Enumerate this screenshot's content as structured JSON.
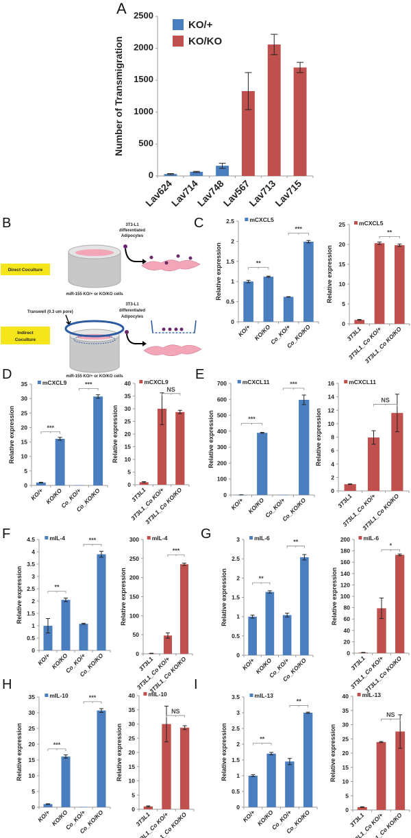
{
  "panels": {
    "A": "A",
    "B": "B",
    "C": "C",
    "D": "D",
    "E": "E",
    "F": "F",
    "G": "G",
    "H": "H",
    "I": "I"
  },
  "colors": {
    "blue": "#4a7ebf",
    "red": "#c0504d"
  },
  "diagram": {
    "direct_label": "Direct Coculture",
    "indirect_label_1": "Indirect",
    "indirect_label_2": "Coculture",
    "adipo_1": [
      "3T3-L1",
      "differentiated",
      "Adipocytes"
    ],
    "adipo_2": [
      "3T3-L1",
      "differentiated",
      "Adipocytes"
    ],
    "cells_1": "miR-155 KO/+ or KO/KO cells",
    "cells_2": "miR-155 KO/+ or KO/KO cells",
    "transwell": "Transwell (0.3 um pore)"
  },
  "chart_data": [
    {
      "id": "A",
      "type": "bar",
      "ylabel": "Number of Transmigration",
      "ylim": [
        0,
        2500
      ],
      "yticks": [
        0,
        500,
        1000,
        1500,
        2000,
        2500
      ],
      "legend": [
        {
          "label": "KO/+",
          "color": "blue"
        },
        {
          "label": "KO/KO",
          "color": "red"
        }
      ],
      "categories": [
        "Lav624",
        "Lav714",
        "Lav748",
        "Lav567",
        "Lav713",
        "Lav715"
      ],
      "values": [
        30,
        65,
        160,
        1330,
        2060,
        1700
      ],
      "errors": [
        8,
        8,
        40,
        290,
        160,
        80
      ],
      "bar_colors": [
        "blue",
        "blue",
        "blue",
        "red",
        "red",
        "red"
      ],
      "significance": []
    },
    {
      "id": "C1",
      "type": "bar",
      "ylabel": "Relative expression",
      "ylim": [
        0,
        2.5
      ],
      "yticks": [
        0,
        0.5,
        1,
        1.5,
        2,
        2.5
      ],
      "legend": [
        {
          "label": "mCXCL5",
          "color": "blue"
        }
      ],
      "categories": [
        "KO/+",
        "KO/KO",
        "Co_KO/+",
        "Co_KO/KO"
      ],
      "values": [
        1.0,
        1.12,
        0.62,
        1.99
      ],
      "errors": [
        0.03,
        0.015,
        0.005,
        0.03
      ],
      "bar_colors": [
        "blue",
        "blue",
        "blue",
        "blue"
      ],
      "significance": [
        {
          "from": 0,
          "to": 1,
          "y": 1.35,
          "label": "**"
        },
        {
          "from": 2,
          "to": 3,
          "y": 2.2,
          "label": "***"
        }
      ]
    },
    {
      "id": "C2",
      "type": "bar",
      "ylabel": "Relative expression",
      "ylim": [
        0,
        25
      ],
      "yticks": [
        0,
        5,
        10,
        15,
        20,
        25
      ],
      "legend": [
        {
          "label": "mCXCL5",
          "color": "red"
        }
      ],
      "categories": [
        "3T3L1",
        "3T3L1_Co KO/+",
        "3T3L1_Co KO/KO"
      ],
      "values": [
        1.0,
        20.3,
        19.8
      ],
      "errors": [
        0.1,
        0.3,
        0.3
      ],
      "bar_colors": [
        "red",
        "red",
        "red"
      ],
      "significance": [
        {
          "from": 1,
          "to": 2,
          "y": 22,
          "label": "**"
        }
      ]
    },
    {
      "id": "D1",
      "type": "bar",
      "ylabel": "Relative expression",
      "ylim": [
        0,
        35
      ],
      "yticks": [
        0,
        5,
        10,
        15,
        20,
        25,
        30,
        35
      ],
      "legend": [
        {
          "label": "mCXCL9",
          "color": "blue"
        }
      ],
      "categories": [
        "KO/+",
        "KO/KO",
        "Co_KO/+",
        "Co_KO/KO"
      ],
      "values": [
        1.0,
        16.1,
        0.1,
        30.7
      ],
      "errors": [
        0.1,
        0.5,
        0,
        0.6
      ],
      "bar_colors": [
        "blue",
        "blue",
        "blue",
        "blue"
      ],
      "significance": [
        {
          "from": 0,
          "to": 1,
          "y": 18.5,
          "label": "***"
        },
        {
          "from": 2,
          "to": 3,
          "y": 33.5,
          "label": "***"
        }
      ]
    },
    {
      "id": "D2",
      "type": "bar",
      "ylabel": "Relative expression",
      "ylim": [
        0,
        40
      ],
      "yticks": [
        0,
        5,
        10,
        15,
        20,
        25,
        30,
        35,
        40
      ],
      "legend": [
        {
          "label": "mCXCL9",
          "color": "red"
        }
      ],
      "categories": [
        "3T3L1",
        "3T3L1_Co KO/+",
        "3T3L1_Co KO/KO"
      ],
      "values": [
        1.0,
        30.0,
        28.7
      ],
      "errors": [
        0.2,
        6.3,
        0.7
      ],
      "bar_colors": [
        "red",
        "red",
        "red"
      ],
      "significance": [
        {
          "from": 1,
          "to": 2,
          "y": 36,
          "label": "NS"
        }
      ]
    },
    {
      "id": "E1",
      "type": "bar",
      "ylabel": "Relative expression",
      "ylim": [
        0,
        700
      ],
      "yticks": [
        0,
        100,
        200,
        300,
        400,
        500,
        600,
        700
      ],
      "legend": [
        {
          "label": "mCXCL11",
          "color": "blue"
        }
      ],
      "categories": [
        "KO/+",
        "KO/KO",
        "Co_KO/+",
        "Co_KO/KO"
      ],
      "values": [
        1,
        390,
        1,
        597
      ],
      "errors": [
        0.5,
        3,
        0,
        30
      ],
      "bar_colors": [
        "blue",
        "blue",
        "blue",
        "blue"
      ],
      "significance": [
        {
          "from": 0,
          "to": 1,
          "y": 450,
          "label": "***"
        },
        {
          "from": 2,
          "to": 3,
          "y": 670,
          "label": "***"
        }
      ]
    },
    {
      "id": "E2",
      "type": "bar",
      "ylabel": "Relative expression",
      "ylim": [
        0,
        16
      ],
      "yticks": [
        0,
        2,
        4,
        6,
        8,
        10,
        12,
        14,
        16
      ],
      "legend": [
        {
          "label": "mCXCL11",
          "color": "red"
        }
      ],
      "categories": [
        "3T3L1",
        "3T3L1_Co KO/+",
        "3T3L1_Co KO/KO"
      ],
      "values": [
        1.0,
        7.95,
        11.6
      ],
      "errors": [
        0.05,
        1.0,
        2.8
      ],
      "bar_colors": [
        "red",
        "red",
        "red"
      ],
      "significance": [
        {
          "from": 1,
          "to": 2,
          "y": 12.9,
          "label": "NS"
        }
      ]
    },
    {
      "id": "F1",
      "type": "bar",
      "ylabel": "Relative expression",
      "ylim": [
        0,
        4.5
      ],
      "yticks": [
        0,
        0.5,
        1,
        1.5,
        2,
        2.5,
        3,
        3.5,
        4,
        4.5
      ],
      "legend": [
        {
          "label": "mIL-4",
          "color": "blue"
        }
      ],
      "categories": [
        "KO/+",
        "KO/KO",
        "Co_KO/+",
        "Co_KO/KO"
      ],
      "values": [
        1.0,
        2.05,
        1.08,
        3.9
      ],
      "errors": [
        0.29,
        0.07,
        0.02,
        0.12
      ],
      "bar_colors": [
        "blue",
        "blue",
        "blue",
        "blue"
      ],
      "significance": [
        {
          "from": 0,
          "to": 1,
          "y": 2.4,
          "label": "**"
        },
        {
          "from": 2,
          "to": 3,
          "y": 4.3,
          "label": "***"
        }
      ]
    },
    {
      "id": "F2",
      "type": "bar",
      "ylabel": "Relative expression",
      "ylim": [
        0,
        300
      ],
      "yticks": [
        0,
        50,
        100,
        150,
        200,
        250,
        300
      ],
      "legend": [
        {
          "label": "mIL-4",
          "color": "red"
        }
      ],
      "categories": [
        "3T3L1",
        "3T3L1_Co KO/+",
        "3T3L1_Co KO/KO"
      ],
      "values": [
        1,
        48,
        235
      ],
      "errors": [
        0.5,
        7,
        3
      ],
      "bar_colors": [
        "red",
        "red",
        "red"
      ],
      "significance": [
        {
          "from": 1,
          "to": 2,
          "y": 260,
          "label": "***"
        }
      ]
    },
    {
      "id": "G1",
      "type": "bar",
      "ylabel": "Relative expression",
      "ylim": [
        0,
        3
      ],
      "yticks": [
        0,
        0.5,
        1,
        1.5,
        2,
        2.5,
        3
      ],
      "legend": [
        {
          "label": "mIL-6",
          "color": "blue"
        }
      ],
      "categories": [
        "KO/+",
        "KO/KO",
        "Co_KO/+",
        "Co_KO/KO"
      ],
      "values": [
        1.0,
        1.64,
        1.04,
        2.54
      ],
      "errors": [
        0.04,
        0.03,
        0.05,
        0.07
      ],
      "bar_colors": [
        "blue",
        "blue",
        "blue",
        "blue"
      ],
      "significance": [
        {
          "from": 0,
          "to": 1,
          "y": 1.88,
          "label": "**"
        },
        {
          "from": 2,
          "to": 3,
          "y": 2.83,
          "label": "**"
        }
      ]
    },
    {
      "id": "G2",
      "type": "bar",
      "ylabel": "Relative expression",
      "ylim": [
        0,
        200
      ],
      "yticks": [
        0,
        20,
        40,
        60,
        80,
        100,
        120,
        140,
        160,
        180,
        200
      ],
      "legend": [
        {
          "label": "mIL-6",
          "color": "red"
        }
      ],
      "categories": [
        "3T3L1",
        "3T3L1_Co KO/+",
        "3T3L1_Co KO/KO"
      ],
      "values": [
        1,
        79,
        173
      ],
      "errors": [
        0.3,
        18,
        1.5
      ],
      "bar_colors": [
        "red",
        "red",
        "red"
      ],
      "significance": [
        {
          "from": 1,
          "to": 2,
          "y": 182,
          "label": "*"
        }
      ]
    },
    {
      "id": "H1",
      "type": "bar",
      "ylabel": "Relative expression",
      "ylim": [
        0,
        35
      ],
      "yticks": [
        0,
        5,
        10,
        15,
        20,
        25,
        30,
        35
      ],
      "legend": [
        {
          "label": "mIL-10",
          "color": "blue"
        }
      ],
      "categories": [
        "KO/+",
        "KO/KO",
        "Co_KO/+",
        "Co_KO/KO"
      ],
      "values": [
        1.0,
        16.1,
        0.1,
        30.7
      ],
      "errors": [
        0.1,
        0.5,
        0,
        0.6
      ],
      "bar_colors": [
        "blue",
        "blue",
        "blue",
        "blue"
      ],
      "significance": [
        {
          "from": 0,
          "to": 1,
          "y": 18.5,
          "label": "***"
        },
        {
          "from": 2,
          "to": 3,
          "y": 33.5,
          "label": "***"
        }
      ]
    },
    {
      "id": "H2",
      "type": "bar",
      "ylabel": "Relative expression",
      "ylim": [
        0,
        40
      ],
      "yticks": [
        0,
        5,
        10,
        15,
        20,
        25,
        30,
        35,
        40
      ],
      "legend": [
        {
          "label": "mIL-10",
          "color": "red"
        }
      ],
      "categories": [
        "3T3L1",
        "3T3L1_Co KO/+",
        "3T3L1_Co KO/KO"
      ],
      "values": [
        1.0,
        30.0,
        28.7
      ],
      "errors": [
        0.2,
        6.3,
        0.7
      ],
      "bar_colors": [
        "red",
        "red",
        "red"
      ],
      "significance": [
        {
          "from": 1,
          "to": 2,
          "y": 33,
          "label": "NS"
        }
      ]
    },
    {
      "id": "I1",
      "type": "bar",
      "ylabel": "Relative expression",
      "ylim": [
        0,
        3.5
      ],
      "yticks": [
        0,
        0.5,
        1,
        1.5,
        2,
        2.5,
        3,
        3.5
      ],
      "legend": [
        {
          "label": "mIL-13",
          "color": "blue"
        }
      ],
      "categories": [
        "KO/+",
        "KO/KO",
        "Co_KO/+",
        "Co_KO/KO"
      ],
      "values": [
        1.0,
        1.7,
        1.45,
        3.0
      ],
      "errors": [
        0.03,
        0.04,
        0.1,
        0.02
      ],
      "bar_colors": [
        "blue",
        "blue",
        "blue",
        "blue"
      ],
      "significance": [
        {
          "from": 0,
          "to": 1,
          "y": 2.03,
          "label": "**"
        },
        {
          "from": 2,
          "to": 3,
          "y": 3.23,
          "label": "**"
        }
      ]
    },
    {
      "id": "I2",
      "type": "bar",
      "ylabel": "Relative expression",
      "ylim": [
        0,
        40
      ],
      "yticks": [
        0,
        5,
        10,
        15,
        20,
        25,
        30,
        35,
        40
      ],
      "legend": [
        {
          "label": "mIL-13",
          "color": "red"
        }
      ],
      "categories": [
        "3T3L1",
        "3T3L1_Co KO/+",
        "3T3L1_Co KO/KO"
      ],
      "values": [
        1.0,
        23.9,
        27.6
      ],
      "errors": [
        0.1,
        0.2,
        5.9
      ],
      "bar_colors": [
        "red",
        "red",
        "red"
      ],
      "significance": [
        {
          "from": 1,
          "to": 2,
          "y": 32,
          "label": "NS"
        }
      ]
    }
  ]
}
